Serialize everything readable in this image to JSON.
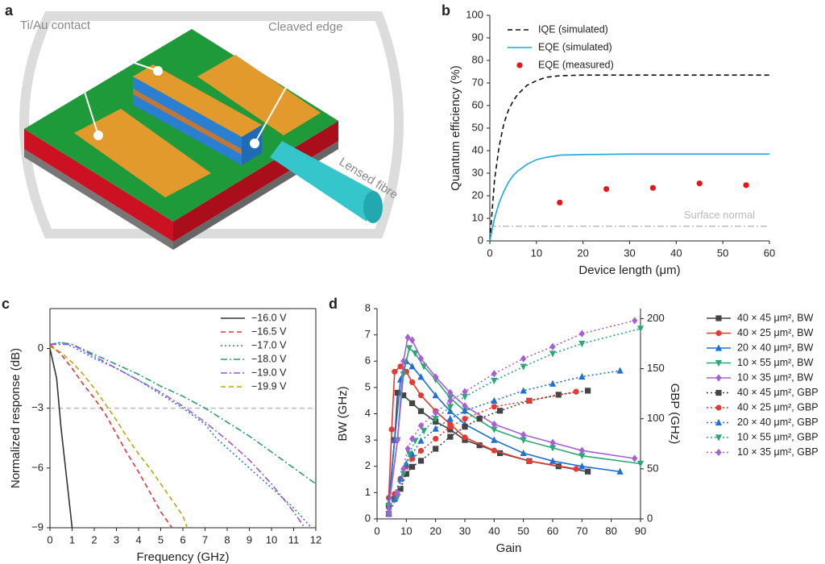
{
  "diagram": {
    "label": "a",
    "annotations": [
      "Ti/Au contact",
      "Cleaved edge",
      "Lensed fibre"
    ]
  },
  "chart_data": [
    {
      "type": "line",
      "label": "b",
      "xlabel": "Device length (μm)",
      "ylabel": "Quantum efficiency (%)",
      "xlim": [
        0,
        60
      ],
      "xticks": [
        0,
        10,
        20,
        30,
        40,
        50,
        60
      ],
      "ylim": [
        0,
        100
      ],
      "yticks": [
        0,
        10,
        20,
        30,
        40,
        50,
        60,
        70,
        80,
        90,
        100
      ],
      "legend": "upper left",
      "hlines": [
        {
          "value": 6.5,
          "label": "Surface normal",
          "color": "#bbbbbb",
          "line_style": "dashdot"
        }
      ],
      "series": [
        {
          "name": "IQE (simulated)",
          "color": "#111111",
          "line_style": "dashed",
          "x": [
            0,
            1,
            2,
            3,
            4,
            5,
            6,
            8,
            10,
            12,
            15,
            20,
            30,
            40,
            50,
            60
          ],
          "values": [
            0,
            27,
            42,
            52,
            58,
            62,
            65,
            69,
            71,
            72.5,
            73.2,
            73.5,
            73.5,
            73.5,
            73.5,
            73.5
          ]
        },
        {
          "name": "EQE (simulated)",
          "color": "#1ea7e1",
          "line_style": "solid",
          "x": [
            0,
            1,
            2,
            3,
            4,
            5,
            6,
            8,
            10,
            12,
            15,
            20,
            30,
            40,
            50,
            60
          ],
          "values": [
            0,
            10,
            17,
            22,
            26,
            29,
            31,
            34,
            36,
            37,
            38,
            38.3,
            38.5,
            38.5,
            38.5,
            38.5
          ]
        },
        {
          "name": "EQE (measured)",
          "color": "#e8141a",
          "line_style": "none",
          "marker": "circle",
          "x": [
            15,
            25,
            35,
            45,
            55
          ],
          "values": [
            17,
            23,
            23.5,
            25.5,
            24.7
          ]
        }
      ]
    },
    {
      "type": "line",
      "label": "c",
      "xlabel": "Frequency (GHz)",
      "ylabel": "Normalized response (dB)",
      "xlim": [
        0,
        12
      ],
      "xticks": [
        0,
        1,
        2,
        3,
        4,
        5,
        6,
        7,
        8,
        9,
        10,
        11,
        12
      ],
      "ylim": [
        -9,
        2
      ],
      "yticks": [
        {
          "value": -9,
          "label": "−9"
        },
        {
          "value": -6,
          "label": "−6"
        },
        {
          "value": -3,
          "label": "−3"
        },
        0
      ],
      "legend": "upper right",
      "hlines": [
        {
          "value": -3,
          "color": "#bbbbbb",
          "line_style": "dashed"
        }
      ],
      "series": [
        {
          "name": "−16.0 V",
          "color": "#333333",
          "line_style": "solid",
          "x": [
            0,
            0.3,
            0.5,
            0.7,
            0.9,
            1.0
          ],
          "values": [
            0,
            -1.5,
            -4,
            -6,
            -8,
            -9
          ]
        },
        {
          "name": "−16.5 V",
          "color": "#e8323a",
          "line_style": "dashed",
          "x": [
            0,
            0.5,
            1,
            1.5,
            2,
            2.5,
            3,
            3.5,
            4,
            4.5,
            5,
            5.5
          ],
          "values": [
            0.2,
            -0.3,
            -1,
            -1.8,
            -2.5,
            -3.3,
            -4.3,
            -5.3,
            -6.2,
            -7.2,
            -8.2,
            -9
          ]
        },
        {
          "name": "−17.0 V",
          "color": "#2b7bd1",
          "line_style": "dotted",
          "x": [
            0,
            0.5,
            1,
            2,
            3,
            4,
            5,
            6,
            7,
            7.5,
            8,
            9,
            10,
            11,
            11.8
          ],
          "values": [
            0.2,
            0.3,
            0.1,
            -0.5,
            -1,
            -1.6,
            -2.3,
            -3,
            -3.8,
            -4.5,
            -5,
            -6,
            -7,
            -8,
            -9
          ]
        },
        {
          "name": "−18.0 V",
          "color": "#2e9e6a",
          "line_style": "dashdot",
          "x": [
            0,
            0.5,
            1,
            2,
            3,
            4,
            5,
            6,
            7,
            8,
            9,
            10,
            11,
            12
          ],
          "values": [
            0.2,
            0.3,
            0.2,
            -0.3,
            -0.8,
            -1.3,
            -1.9,
            -2.4,
            -3,
            -3.7,
            -4.4,
            -5.2,
            -6,
            -6.8
          ]
        },
        {
          "name": "−19.0 V",
          "color": "#9b59d0",
          "line_style": "dashdot",
          "x": [
            0,
            1,
            2,
            3,
            4,
            5,
            6,
            7,
            8,
            9,
            10,
            10.5,
            11,
            11.5
          ],
          "values": [
            0.2,
            0.2,
            -0.4,
            -1,
            -1.6,
            -2.2,
            -2.9,
            -3.7,
            -4.6,
            -5.6,
            -6.8,
            -7.5,
            -8.2,
            -9
          ]
        },
        {
          "name": "−19.9 V",
          "color": "#c8a010",
          "line_style": "dashed",
          "x": [
            0,
            0.5,
            1,
            1.5,
            2,
            2.5,
            3,
            3.5,
            4,
            4.5,
            5,
            5.5,
            6,
            6.2
          ],
          "values": [
            0.1,
            -0.2,
            -0.7,
            -1.3,
            -2,
            -2.8,
            -3.6,
            -4.5,
            -5.3,
            -6,
            -6.8,
            -7.6,
            -8.4,
            -9
          ]
        }
      ]
    },
    {
      "type": "line",
      "label": "d",
      "xlabel": "Gain",
      "ylabel": "BW (GHz)",
      "y2label": "GBP (GHz)",
      "xlim": [
        0,
        90
      ],
      "xticks": [
        0,
        10,
        20,
        30,
        40,
        50,
        60,
        70,
        80,
        90
      ],
      "ylim": [
        0,
        8
      ],
      "yticks": [
        0,
        1,
        2,
        3,
        4,
        5,
        6,
        7,
        8
      ],
      "y2lim": [
        0,
        210
      ],
      "y2ticks": [
        0,
        50,
        100,
        150,
        200
      ],
      "legend": "outside right",
      "series": [
        {
          "name": "40 × 45 μm², BW",
          "color": "#444444",
          "line_style": "solid",
          "marker": "square",
          "x": [
            4,
            6,
            7,
            9,
            12,
            15,
            20,
            25,
            30,
            35,
            42,
            52,
            62,
            72
          ],
          "values": [
            0.5,
            3,
            4.8,
            4.7,
            4.4,
            4.1,
            3.7,
            3.4,
            3.0,
            2.8,
            2.5,
            2.2,
            2.0,
            1.8
          ]
        },
        {
          "name": "40 × 25 μm², BW",
          "color": "#e53935",
          "line_style": "solid",
          "marker": "circle",
          "x": [
            4,
            5,
            6,
            8,
            10,
            12,
            15,
            20,
            25,
            30,
            40,
            52,
            68
          ],
          "values": [
            0.8,
            3.4,
            5.6,
            5.8,
            5.6,
            5.2,
            4.7,
            4.1,
            3.6,
            3.1,
            2.6,
            2.2,
            1.9
          ]
        },
        {
          "name": "20 × 40 μm², BW",
          "color": "#1e6fd6",
          "line_style": "solid",
          "marker": "triangle",
          "x": [
            4,
            6,
            8,
            10,
            12,
            15,
            20,
            25,
            30,
            40,
            50,
            60,
            70,
            83
          ],
          "values": [
            0.6,
            3,
            5.3,
            6.0,
            5.8,
            5.4,
            4.7,
            4.1,
            3.6,
            3.0,
            2.5,
            2.2,
            2.0,
            1.8
          ]
        },
        {
          "name": "10 × 55 μm², BW",
          "color": "#2aa876",
          "line_style": "solid",
          "marker": "triangle-down",
          "x": [
            4,
            7,
            9,
            11,
            13,
            16,
            20,
            25,
            30,
            40,
            50,
            60,
            70,
            90
          ],
          "values": [
            0.5,
            3,
            5.5,
            6.5,
            6.3,
            5.8,
            5.3,
            4.6,
            4.1,
            3.4,
            3.0,
            2.7,
            2.4,
            2.1
          ]
        },
        {
          "name": "10 × 35 μm², BW",
          "color": "#a75fd6",
          "line_style": "solid",
          "marker": "diamond",
          "x": [
            4,
            7,
            9,
            10.5,
            12,
            15,
            20,
            25,
            30,
            40,
            50,
            60,
            70,
            88
          ],
          "values": [
            0.4,
            3,
            6,
            6.9,
            6.8,
            6.1,
            5.4,
            4.8,
            4.3,
            3.6,
            3.2,
            2.9,
            2.6,
            2.3
          ]
        },
        {
          "name": "40 × 45 μm², GBP",
          "color": "#444444",
          "line_style": "dotted",
          "marker": "square",
          "axis": "y2",
          "x": [
            4,
            6,
            8,
            10,
            12,
            15,
            20,
            25,
            30,
            35,
            42,
            52,
            62,
            72
          ],
          "values": [
            5,
            20,
            30,
            45,
            52,
            58,
            70,
            82,
            92,
            100,
            108,
            118,
            124,
            128
          ]
        },
        {
          "name": "40 × 25 μm², GBP",
          "color": "#e53935",
          "line_style": "dotted",
          "marker": "circle",
          "axis": "y2",
          "x": [
            4,
            6,
            8,
            10,
            12,
            15,
            20,
            25,
            30,
            40,
            52,
            68
          ],
          "values": [
            5,
            25,
            40,
            52,
            60,
            68,
            80,
            92,
            100,
            112,
            118,
            127
          ]
        },
        {
          "name": "20 × 40 μm², GBP",
          "color": "#1e6fd6",
          "line_style": "dotted",
          "marker": "triangle",
          "axis": "y2",
          "x": [
            4,
            6,
            8,
            10,
            12,
            15,
            20,
            25,
            30,
            40,
            50,
            60,
            70,
            83
          ],
          "values": [
            5,
            20,
            40,
            55,
            65,
            78,
            90,
            100,
            108,
            118,
            128,
            135,
            142,
            148
          ]
        },
        {
          "name": "10 × 55 μm², GBP",
          "color": "#2aa876",
          "line_style": "dotted",
          "marker": "triangle-down",
          "axis": "y2",
          "x": [
            4,
            7,
            9,
            11,
            13,
            16,
            20,
            25,
            30,
            40,
            50,
            60,
            70,
            90
          ],
          "values": [
            5,
            22,
            45,
            65,
            78,
            88,
            100,
            112,
            122,
            138,
            152,
            165,
            175,
            190
          ]
        },
        {
          "name": "10 × 35 μm², GBP",
          "color": "#a75fd6",
          "line_style": "dotted",
          "marker": "diamond",
          "axis": "y2",
          "x": [
            4,
            7,
            9,
            10.5,
            12,
            15,
            20,
            25,
            30,
            40,
            50,
            60,
            70,
            88
          ],
          "values": [
            5,
            25,
            50,
            70,
            80,
            93,
            106,
            118,
            127,
            145,
            160,
            172,
            185,
            198
          ]
        }
      ]
    }
  ]
}
